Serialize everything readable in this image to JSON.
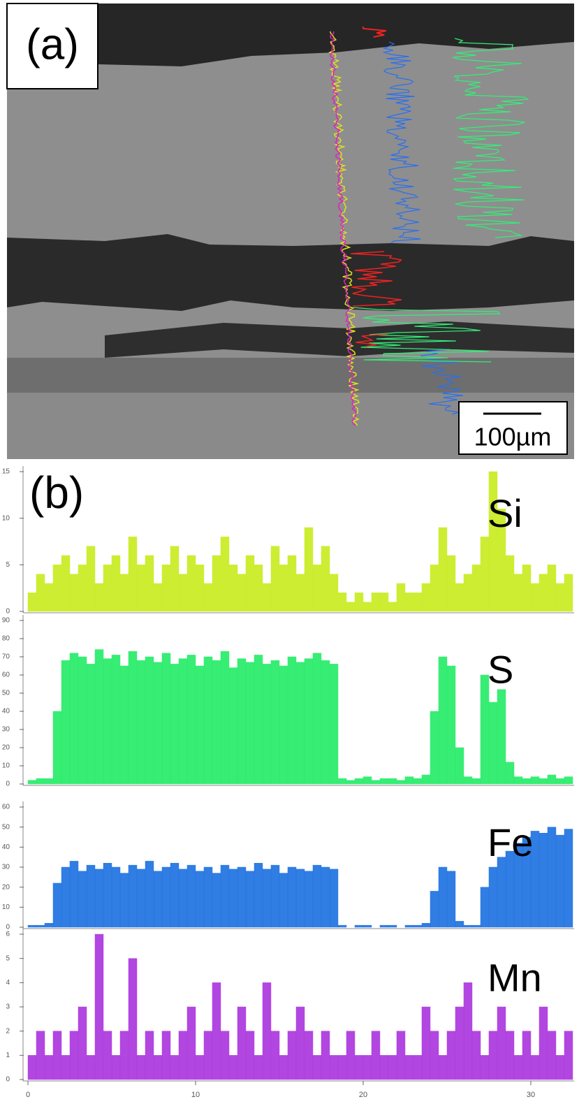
{
  "figure": {
    "panel_a_label": "(a)",
    "scale_bar_label": "100µm",
    "panel_b_label": "(b)"
  },
  "chart_data": [
    {
      "type": "histogram",
      "title": "Si",
      "color": "#c8ec1e",
      "bins": [
        0,
        0.5,
        1,
        1.5,
        2,
        2.5,
        3,
        3.5,
        4,
        4.5,
        5,
        5.5,
        6,
        6.5,
        7,
        7.5,
        8,
        8.5,
        9,
        9.5,
        10,
        10.5,
        11,
        11.5,
        12,
        12.5,
        13,
        13.5,
        14,
        14.5,
        15,
        15.5,
        16,
        16.5,
        17,
        17.5,
        18,
        18.5,
        19,
        19.5,
        20,
        20.5,
        21,
        21.5,
        22,
        22.5,
        23,
        23.5,
        24,
        24.5,
        25,
        25.5,
        26,
        26.5,
        27,
        27.5,
        28,
        28.5,
        29,
        29.5,
        30,
        30.5,
        31,
        31.5,
        32,
        32.5
      ],
      "values": [
        2,
        4,
        3,
        5,
        6,
        4,
        5,
        7,
        3,
        5,
        6,
        4,
        8,
        5,
        6,
        3,
        5,
        7,
        4,
        6,
        5,
        3,
        6,
        8,
        5,
        4,
        6,
        5,
        3,
        7,
        5,
        6,
        4,
        9,
        5,
        7,
        4,
        2,
        1,
        2,
        1,
        2,
        2,
        1,
        3,
        2,
        2,
        3,
        5,
        9,
        6,
        3,
        4,
        5,
        8,
        15,
        11,
        6,
        4,
        5,
        3,
        4,
        5,
        3,
        4
      ],
      "xlim": [
        0,
        32.5
      ],
      "ylim": [
        0,
        15
      ],
      "yticks": [
        0,
        5,
        10,
        15
      ]
    },
    {
      "type": "histogram",
      "title": "S",
      "color": "#22ec66",
      "bins": [
        0,
        0.5,
        1,
        1.5,
        2,
        2.5,
        3,
        3.5,
        4,
        4.5,
        5,
        5.5,
        6,
        6.5,
        7,
        7.5,
        8,
        8.5,
        9,
        9.5,
        10,
        10.5,
        11,
        11.5,
        12,
        12.5,
        13,
        13.5,
        14,
        14.5,
        15,
        15.5,
        16,
        16.5,
        17,
        17.5,
        18,
        18.5,
        19,
        19.5,
        20,
        20.5,
        21,
        21.5,
        22,
        22.5,
        23,
        23.5,
        24,
        24.5,
        25,
        25.5,
        26,
        26.5,
        27,
        27.5,
        28,
        28.5,
        29,
        29.5,
        30,
        30.5,
        31,
        31.5,
        32,
        32.5
      ],
      "values": [
        2,
        3,
        3,
        40,
        68,
        72,
        70,
        66,
        74,
        69,
        71,
        65,
        73,
        68,
        70,
        67,
        72,
        66,
        69,
        71,
        65,
        70,
        68,
        73,
        64,
        69,
        67,
        71,
        66,
        68,
        65,
        70,
        67,
        69,
        72,
        68,
        66,
        3,
        2,
        3,
        4,
        2,
        3,
        3,
        2,
        4,
        3,
        5,
        40,
        70,
        65,
        20,
        4,
        3,
        60,
        45,
        52,
        12,
        4,
        3,
        4,
        3,
        5,
        3,
        4
      ],
      "xlim": [
        0,
        32.5
      ],
      "ylim": [
        0,
        90
      ],
      "yticks": [
        0,
        10,
        20,
        30,
        40,
        50,
        60,
        70,
        80,
        90
      ]
    },
    {
      "type": "histogram",
      "title": "Fe",
      "color": "#1a6fe0",
      "bins": [
        0,
        0.5,
        1,
        1.5,
        2,
        2.5,
        3,
        3.5,
        4,
        4.5,
        5,
        5.5,
        6,
        6.5,
        7,
        7.5,
        8,
        8.5,
        9,
        9.5,
        10,
        10.5,
        11,
        11.5,
        12,
        12.5,
        13,
        13.5,
        14,
        14.5,
        15,
        15.5,
        16,
        16.5,
        17,
        17.5,
        18,
        18.5,
        19,
        19.5,
        20,
        20.5,
        21,
        21.5,
        22,
        22.5,
        23,
        23.5,
        24,
        24.5,
        25,
        25.5,
        26,
        26.5,
        27,
        27.5,
        28,
        28.5,
        29,
        29.5,
        30,
        30.5,
        31,
        31.5,
        32,
        32.5
      ],
      "values": [
        1,
        1,
        2,
        22,
        30,
        33,
        28,
        31,
        29,
        32,
        30,
        27,
        31,
        29,
        33,
        28,
        30,
        32,
        29,
        31,
        28,
        30,
        27,
        31,
        29,
        30,
        28,
        32,
        29,
        31,
        27,
        30,
        29,
        28,
        31,
        30,
        29,
        1,
        0,
        1,
        1,
        0,
        1,
        1,
        0,
        1,
        1,
        2,
        18,
        30,
        28,
        3,
        1,
        1,
        20,
        30,
        35,
        38,
        42,
        45,
        48,
        47,
        50,
        46,
        49
      ],
      "xlim": [
        0,
        32.5
      ],
      "ylim": [
        0,
        60
      ],
      "yticks": [
        0,
        10,
        20,
        30,
        40,
        50,
        60
      ]
    },
    {
      "type": "histogram",
      "title": "Mn",
      "color": "#aa33dd",
      "bins": [
        0,
        0.5,
        1,
        1.5,
        2,
        2.5,
        3,
        3.5,
        4,
        4.5,
        5,
        5.5,
        6,
        6.5,
        7,
        7.5,
        8,
        8.5,
        9,
        9.5,
        10,
        10.5,
        11,
        11.5,
        12,
        12.5,
        13,
        13.5,
        14,
        14.5,
        15,
        15.5,
        16,
        16.5,
        17,
        17.5,
        18,
        18.5,
        19,
        19.5,
        20,
        20.5,
        21,
        21.5,
        22,
        22.5,
        23,
        23.5,
        24,
        24.5,
        25,
        25.5,
        26,
        26.5,
        27,
        27.5,
        28,
        28.5,
        29,
        29.5,
        30,
        30.5,
        31,
        31.5,
        32,
        32.5
      ],
      "values": [
        1,
        2,
        1,
        2,
        1,
        2,
        3,
        1,
        6,
        2,
        1,
        2,
        5,
        1,
        2,
        1,
        2,
        1,
        2,
        3,
        1,
        2,
        4,
        2,
        1,
        3,
        2,
        1,
        4,
        2,
        1,
        2,
        3,
        2,
        1,
        2,
        1,
        1,
        2,
        1,
        1,
        2,
        1,
        1,
        2,
        1,
        1,
        3,
        2,
        1,
        2,
        3,
        4,
        2,
        1,
        2,
        3,
        2,
        1,
        2,
        1,
        3,
        2,
        1,
        2
      ],
      "xlim": [
        0,
        32.5
      ],
      "ylim": [
        0,
        6
      ],
      "yticks": [
        0,
        1,
        2,
        3,
        4,
        5,
        6
      ],
      "xticks": [
        0,
        10,
        20,
        30
      ]
    }
  ]
}
